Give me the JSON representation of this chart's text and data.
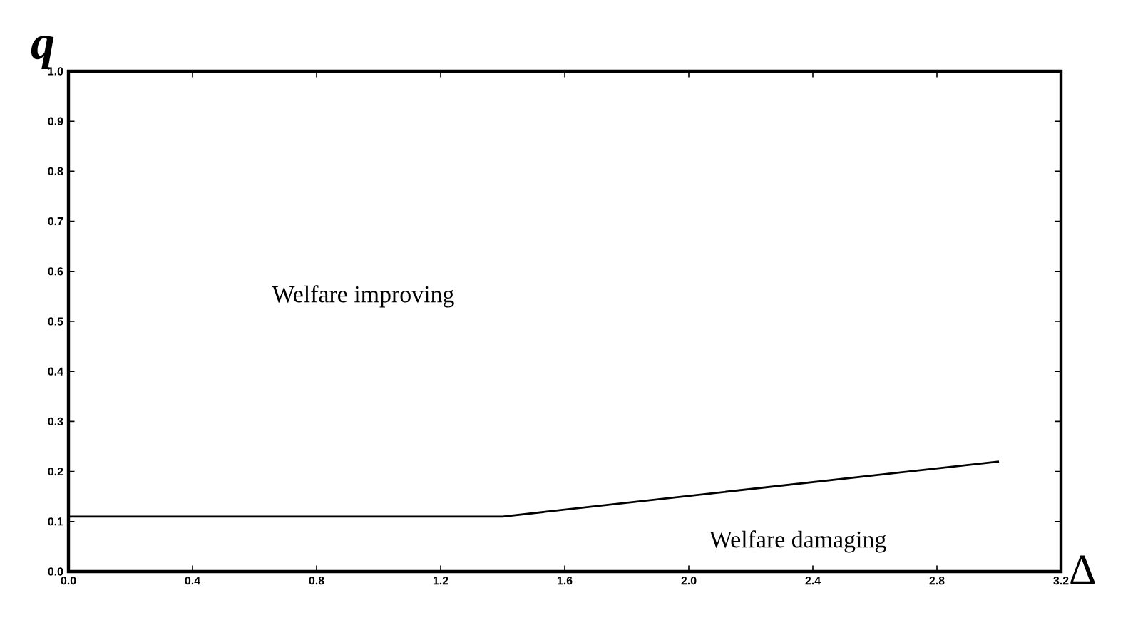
{
  "chart_data": {
    "type": "line",
    "xlabel": "Δ",
    "ylabel": "q",
    "x": [
      0,
      1.4,
      3.0
    ],
    "series": [
      {
        "color": "#000000",
        "values": [
          0.11,
          0.11,
          0.22
        ]
      }
    ],
    "xlim": [
      0,
      3.2
    ],
    "ylim": [
      0,
      1.0
    ],
    "xticks": [
      {
        "value": 0,
        "label": "0.0"
      },
      0.4,
      0.8,
      1.2,
      1.6,
      {
        "value": 2.0,
        "label": "2.0"
      },
      2.4,
      2.8,
      3.2
    ],
    "yticks": [
      {
        "value": 0,
        "label": "0.0"
      },
      0.1,
      0.2,
      0.3,
      0.4,
      0.5,
      0.6,
      0.7,
      0.8,
      0.9,
      {
        "value": 1.0,
        "label": "1.0"
      }
    ],
    "annotations": [
      "Welfare improving",
      "Welfare damaging"
    ],
    "grid": false,
    "legend": false,
    "marker": "none",
    "line_style": "solid"
  }
}
